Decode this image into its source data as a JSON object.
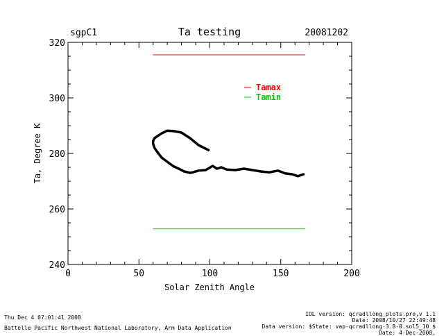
{
  "header": {
    "site": "sgpC1",
    "title": "Ta testing",
    "date": "20081202"
  },
  "footer": {
    "left_line1": "Thu Dec  4 07:01:41 2008",
    "left_line2": "Battelle Pacific Northwest National Laboratory, Arm Data Application",
    "right_line1": "IDL version: qcradllong_plots.pro,v 1.1",
    "right_line2": "Date: 2008/10/27 22:49:48",
    "right_line3": "Data version: $State: vap-qcradllong-3.8-0.sol5_10 $",
    "right_line4": "Date: 4-Dec-2008,"
  },
  "chart_data": {
    "type": "line",
    "title": "Ta testing",
    "xlabel": "Solar Zenith Angle",
    "ylabel": "Ta, Degree K",
    "xlim": [
      0,
      200
    ],
    "ylim": [
      240,
      320
    ],
    "xticks": [
      0,
      50,
      100,
      150,
      200
    ],
    "yticks": [
      240,
      260,
      280,
      300,
      320
    ],
    "legend_placement": "top-right",
    "series": [
      {
        "name": "Tamax",
        "color": "#ff0000",
        "x": [
          60,
          167
        ],
        "y": [
          315.5,
          315.5
        ]
      },
      {
        "name": "Tamin",
        "color": "#00cc00",
        "x": [
          60,
          167
        ],
        "y": [
          252.8,
          252.8
        ]
      },
      {
        "name": "",
        "color": "#000000",
        "x": [
          99,
          92,
          86,
          80,
          75,
          70,
          66,
          63,
          61,
          60,
          60,
          61,
          63,
          66,
          70,
          74,
          78,
          82,
          86,
          88,
          92,
          97,
          102,
          105,
          108,
          112,
          118,
          124,
          130,
          136,
          142,
          148,
          153,
          158,
          162,
          166
        ],
        "y": [
          281.2,
          283.0,
          285.5,
          287.5,
          288.0,
          288.2,
          287.2,
          286.2,
          285.5,
          284.5,
          283.5,
          282.0,
          280.5,
          278.5,
          277.0,
          275.5,
          274.5,
          273.5,
          273.0,
          273.2,
          273.8,
          274.0,
          275.5,
          274.5,
          275.0,
          274.2,
          274.0,
          274.5,
          274.0,
          273.5,
          273.2,
          273.8,
          272.8,
          272.5,
          271.8,
          272.5
        ]
      }
    ]
  }
}
